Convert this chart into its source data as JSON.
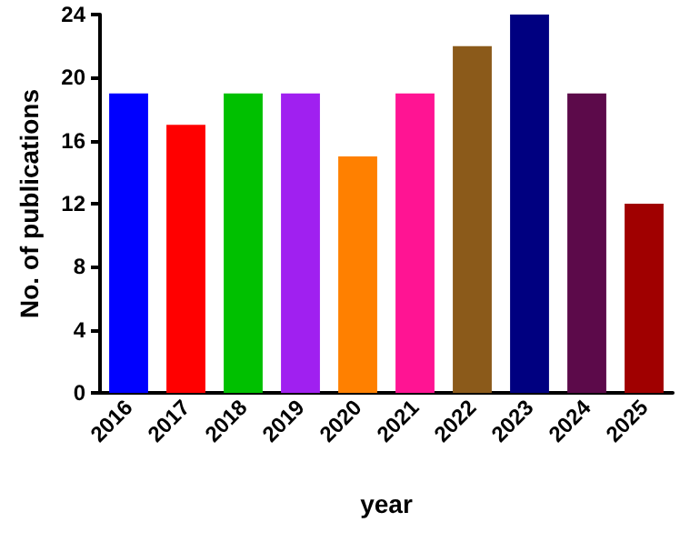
{
  "chart_data": {
    "type": "bar",
    "xlabel": "year",
    "ylabel": "No. of publications",
    "categories": [
      "2016",
      "2017",
      "2018",
      "2019",
      "2020",
      "2021",
      "2022",
      "2023",
      "2024",
      "2025"
    ],
    "values": [
      19,
      17,
      19,
      19,
      15,
      19,
      22,
      24,
      19,
      12
    ],
    "colors": [
      "#0000ff",
      "#ff0000",
      "#00c000",
      "#a020f0",
      "#ff8000",
      "#ff1493",
      "#8b5a1a",
      "#000080",
      "#5c0a4a",
      "#a00000"
    ],
    "ylim": [
      0,
      24
    ],
    "yticks": [
      0,
      4,
      8,
      12,
      16,
      20,
      24
    ],
    "grid": false
  }
}
